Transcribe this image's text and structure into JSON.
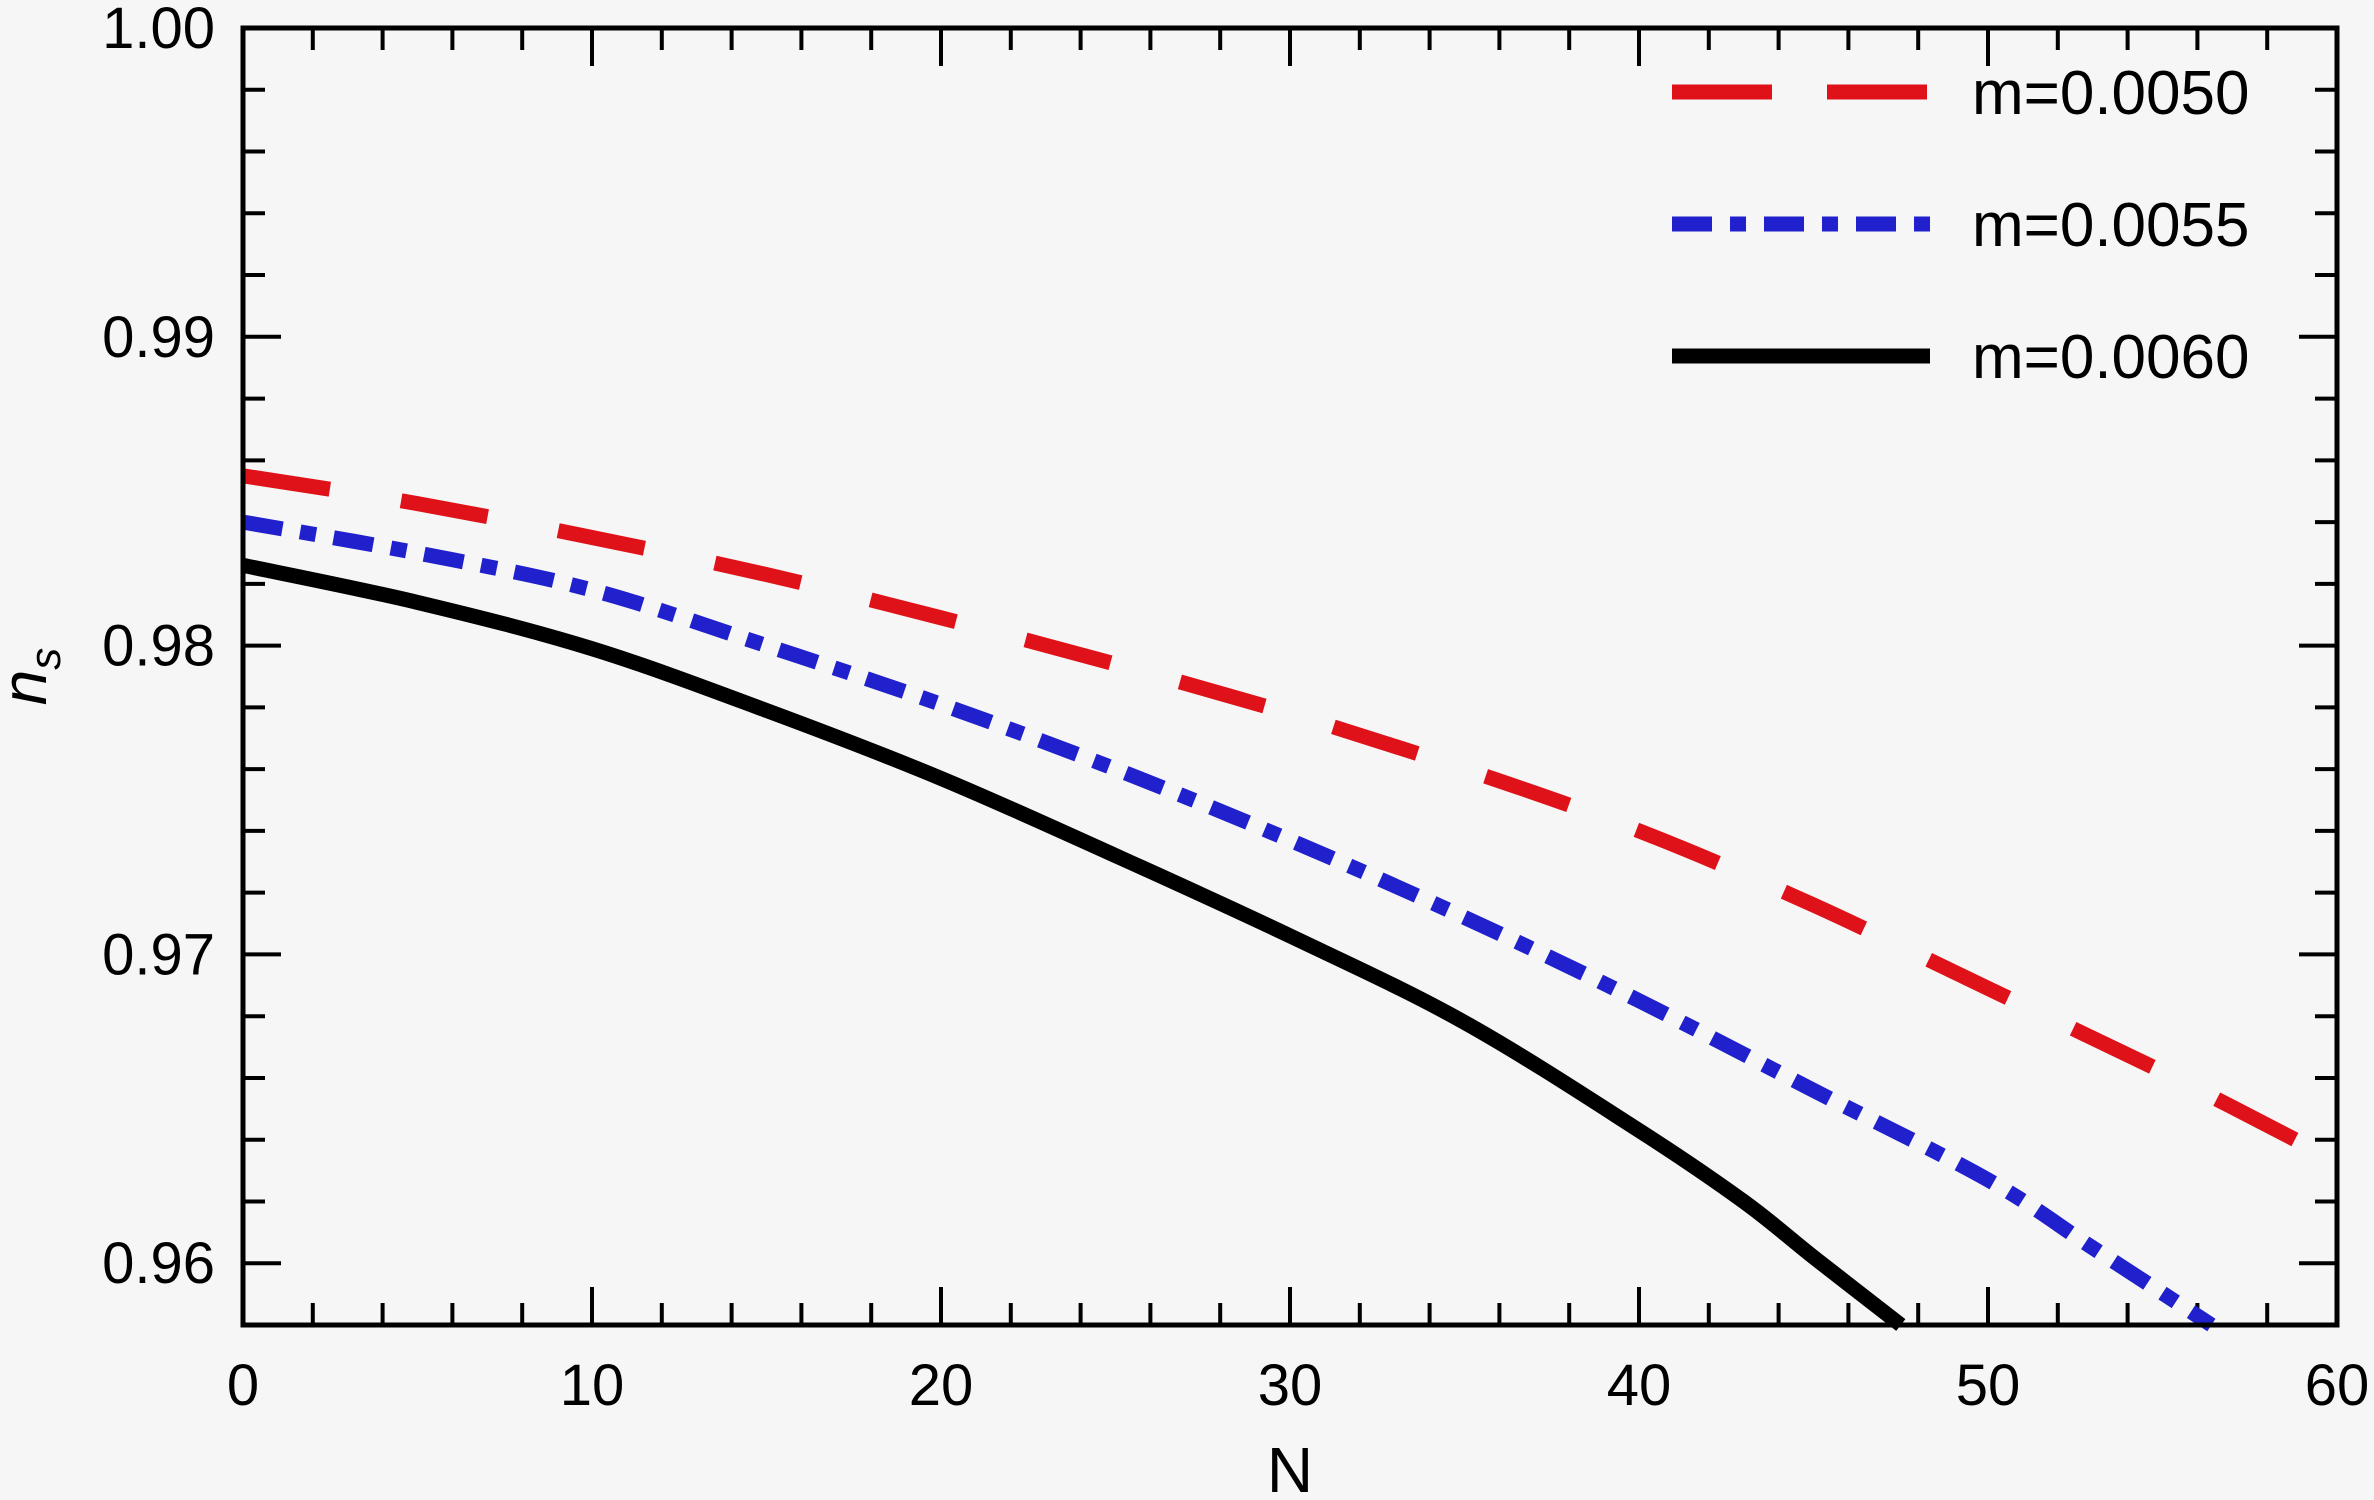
{
  "figure": {
    "background": "#f6f6f6",
    "frame_color": "#000000",
    "tick_color": "#000000"
  },
  "chart_data": {
    "type": "line",
    "title": "",
    "xlabel": "N",
    "ylabel_base": "n",
    "ylabel_sub": "s",
    "xlim": [
      0,
      60
    ],
    "ylim": [
      0.958,
      1.0
    ],
    "x_major_ticks": [
      0,
      10,
      20,
      30,
      40,
      50,
      60
    ],
    "x_minor_step": 2,
    "y_major_ticks": [
      1.0,
      0.99,
      0.98,
      0.97,
      0.96
    ],
    "y_minor_step": 0.002,
    "grid": false,
    "legend_position": "top-right",
    "legend_labels": [
      "m=0.0050",
      "m=0.0055",
      "m=0.0060"
    ],
    "series": [
      {
        "name": "m=0.0050",
        "color": "#e01219",
        "style": "dashed",
        "dash": [
          88,
          72
        ],
        "legend_dash": [
          100,
          55
        ],
        "points": [
          [
            0,
            0.9855
          ],
          [
            5,
            0.9846
          ],
          [
            10,
            0.9835
          ],
          [
            15,
            0.9823
          ],
          [
            20,
            0.9809
          ],
          [
            25,
            0.9794
          ],
          [
            30,
            0.9778
          ],
          [
            35,
            0.976
          ],
          [
            40,
            0.974
          ],
          [
            45,
            0.9716
          ],
          [
            50,
            0.9689
          ],
          [
            55,
            0.9662
          ],
          [
            60,
            0.9633
          ]
        ]
      },
      {
        "name": "m=0.0055",
        "color": "#2020cc",
        "style": "dash-dot",
        "dash": [
          40,
          18,
          16,
          18
        ],
        "legend_dash": [
          40,
          18,
          16,
          18
        ],
        "points": [
          [
            0,
            0.984
          ],
          [
            5,
            0.983
          ],
          [
            10,
            0.9818
          ],
          [
            15,
            0.98
          ],
          [
            20,
            0.9781
          ],
          [
            25,
            0.976
          ],
          [
            30,
            0.9737
          ],
          [
            35,
            0.9712
          ],
          [
            40,
            0.9685
          ],
          [
            45,
            0.9656
          ],
          [
            50,
            0.9627
          ],
          [
            53,
            0.9605
          ],
          [
            56.4,
            0.958
          ]
        ]
      },
      {
        "name": "m=0.0060",
        "color": "#000000",
        "style": "solid",
        "dash": [],
        "legend_dash": [],
        "points": [
          [
            0,
            0.9826
          ],
          [
            5,
            0.9814
          ],
          [
            10,
            0.9799
          ],
          [
            15,
            0.9779
          ],
          [
            20,
            0.9757
          ],
          [
            25,
            0.9732
          ],
          [
            30,
            0.9706
          ],
          [
            35,
            0.9678
          ],
          [
            40,
            0.9643
          ],
          [
            43,
            0.962
          ],
          [
            45,
            0.9602
          ],
          [
            47.5,
            0.958
          ]
        ]
      }
    ]
  }
}
